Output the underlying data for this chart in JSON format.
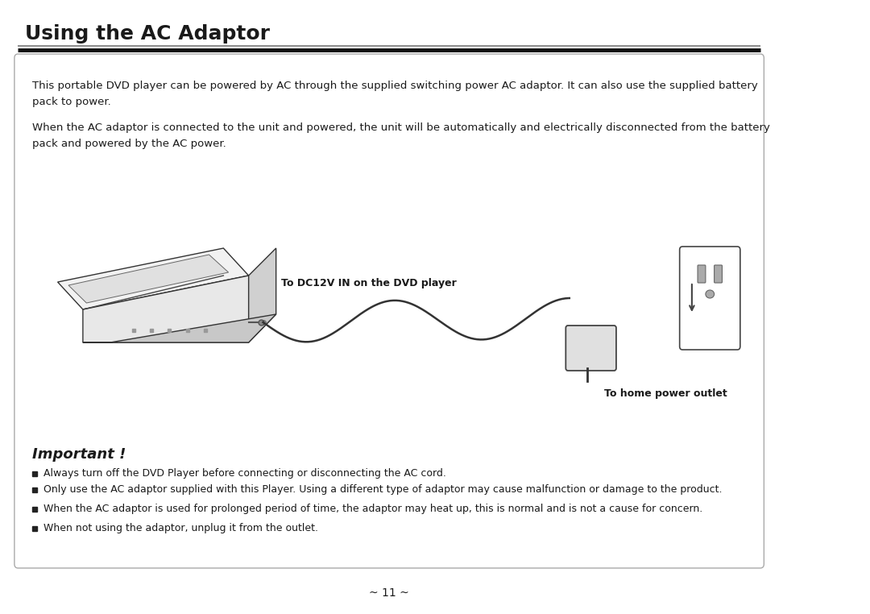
{
  "title": "Using the AC Adaptor",
  "page_number": "~ 11 ~",
  "background_color": "#ffffff",
  "border_color": "#cccccc",
  "para1": "This portable DVD player can be powered by AC through the supplied switching power AC adaptor. It can also use the supplied battery\npack to power.",
  "para2": "When the AC adaptor is connected to the unit and powered, the unit will be automatically and electrically disconnected from the battery\npack and powered by the AC power.",
  "label1": "To DC12V IN on the DVD player",
  "label2": "To home power outlet",
  "important_title": "Important !",
  "bullet1": "Always turn off the DVD Player before connecting or disconnecting the AC cord.",
  "bullet2": "Only use the AC adaptor supplied with this Player. Using a different type of adaptor may cause malfunction or damage to the product.",
  "bullet3": "When the AC adaptor is used for prolonged period of time, the adaptor may heat up, this is normal and is not a cause for concern.",
  "bullet4": "When not using the adaptor, unplug it from the outlet.",
  "text_color": "#1a1a1a",
  "header_color": "#1a1a1a",
  "line_color": "#333333"
}
